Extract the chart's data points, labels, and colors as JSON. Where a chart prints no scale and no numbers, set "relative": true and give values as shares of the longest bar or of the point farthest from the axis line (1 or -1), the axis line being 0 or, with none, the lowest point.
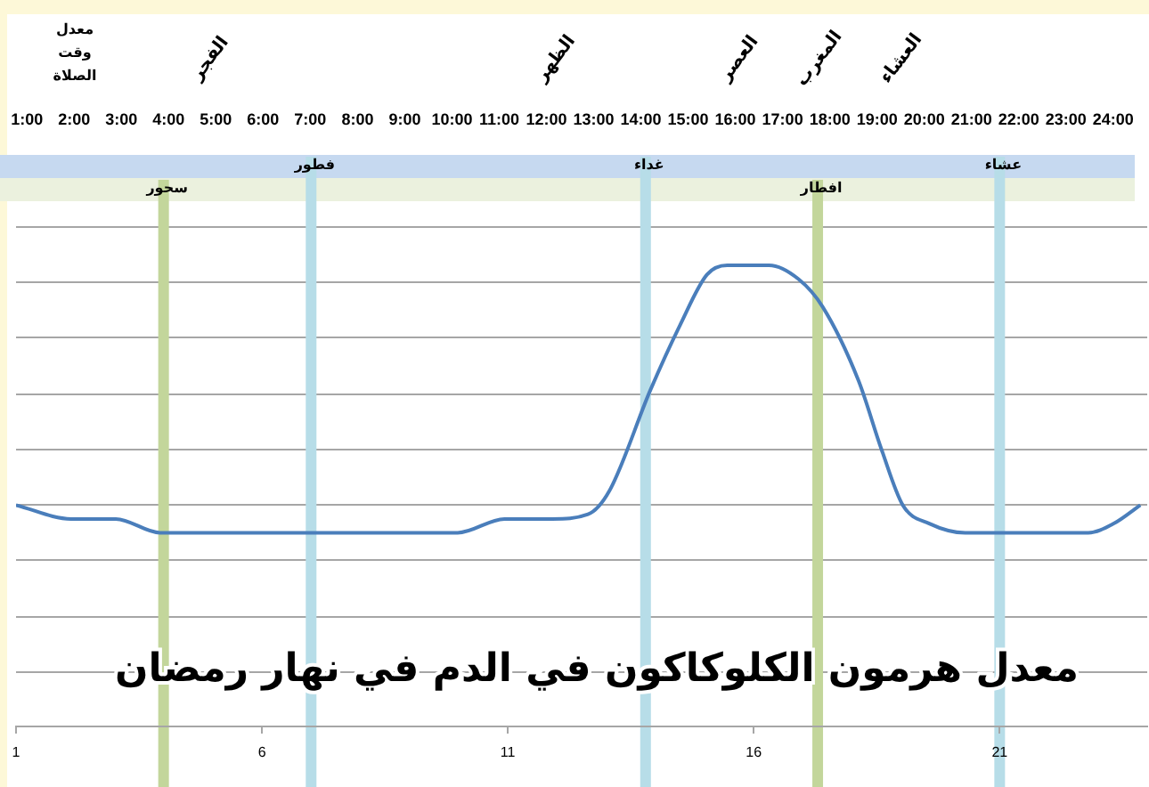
{
  "chart_data": {
    "type": "line",
    "title": "معدل هرمون الكلوكاكون في الدم في نهار رمضان",
    "relative": true,
    "x": [
      1,
      2.12,
      3.03,
      3.93,
      5,
      7,
      9,
      9.98,
      10.93,
      11.9,
      12.63,
      13.06,
      13.9,
      14.5,
      15.05,
      15.46,
      16.31,
      16.91,
      17.4,
      18.13,
      18.6,
      19.03,
      19.57,
      20.3,
      21.98,
      22.8,
      23.32,
      23.86
    ],
    "series": [
      {
        "color": "#4a7ebb",
        "values": [
          0.48,
          0.45,
          0.45,
          0.42,
          0.42,
          0.42,
          0.42,
          0.42,
          0.45,
          0.45,
          0.46,
          0.51,
          0.73,
          0.87,
          0.98,
          1,
          1,
          0.97,
          0.91,
          0.75,
          0.6,
          0.48,
          0.44,
          0.42,
          0.42,
          0.42,
          0.44,
          0.48
        ]
      }
    ],
    "xlim": [
      1,
      24
    ],
    "xticks": [
      1,
      6,
      11,
      16,
      21
    ],
    "x2lim": [
      0.77,
      24.72
    ],
    "x2ticks": [
      {
        "value": 1,
        "label": "1:00"
      },
      {
        "value": 2,
        "label": "2:00"
      },
      {
        "value": 3,
        "label": "3:00"
      },
      {
        "value": 4,
        "label": "4:00"
      },
      {
        "value": 5,
        "label": "5:00"
      },
      {
        "value": 6,
        "label": "6:00"
      },
      {
        "value": 7,
        "label": "7:00"
      },
      {
        "value": 8,
        "label": "8:00"
      },
      {
        "value": 9,
        "label": "9:00"
      },
      {
        "value": 10,
        "label": "10:00"
      },
      {
        "value": 11,
        "label": "11:00"
      },
      {
        "value": 12,
        "label": "12:00"
      },
      {
        "value": 13,
        "label": "13:00"
      },
      {
        "value": 14,
        "label": "14:00"
      },
      {
        "value": 15,
        "label": "15:00"
      },
      {
        "value": 16,
        "label": "16:00"
      },
      {
        "value": 17,
        "label": "17:00"
      },
      {
        "value": 18,
        "label": "18:00"
      },
      {
        "value": 19,
        "label": "19:00"
      },
      {
        "value": 20,
        "label": "20:00"
      },
      {
        "value": 21,
        "label": "21:00"
      },
      {
        "value": 22,
        "label": "22:00"
      },
      {
        "value": 23,
        "label": "23:00"
      },
      {
        "value": 24,
        "label": "24:00"
      }
    ],
    "grid": "y",
    "legend": false,
    "marker": "none",
    "line_style": "solid",
    "ref_lines": [
      {
        "axis": "x",
        "value": 4,
        "label": "سحور",
        "color": "#c3d69b"
      },
      {
        "axis": "x",
        "value": 7,
        "label": "فطور",
        "color": "#b7dde8"
      },
      {
        "axis": "x",
        "value": 13.8,
        "label": "غداء",
        "color": "#b7dde8"
      },
      {
        "axis": "x",
        "value": 17.3,
        "label": "افطار",
        "color": "#c3d69b"
      },
      {
        "axis": "x",
        "value": 21,
        "label": "عشاء",
        "color": "#b7dde8"
      }
    ],
    "annotations": [
      "معدل وقت الصلاة",
      "الفجر",
      "الظهر",
      "العصر",
      "المغرب",
      "العشاء"
    ]
  }
}
